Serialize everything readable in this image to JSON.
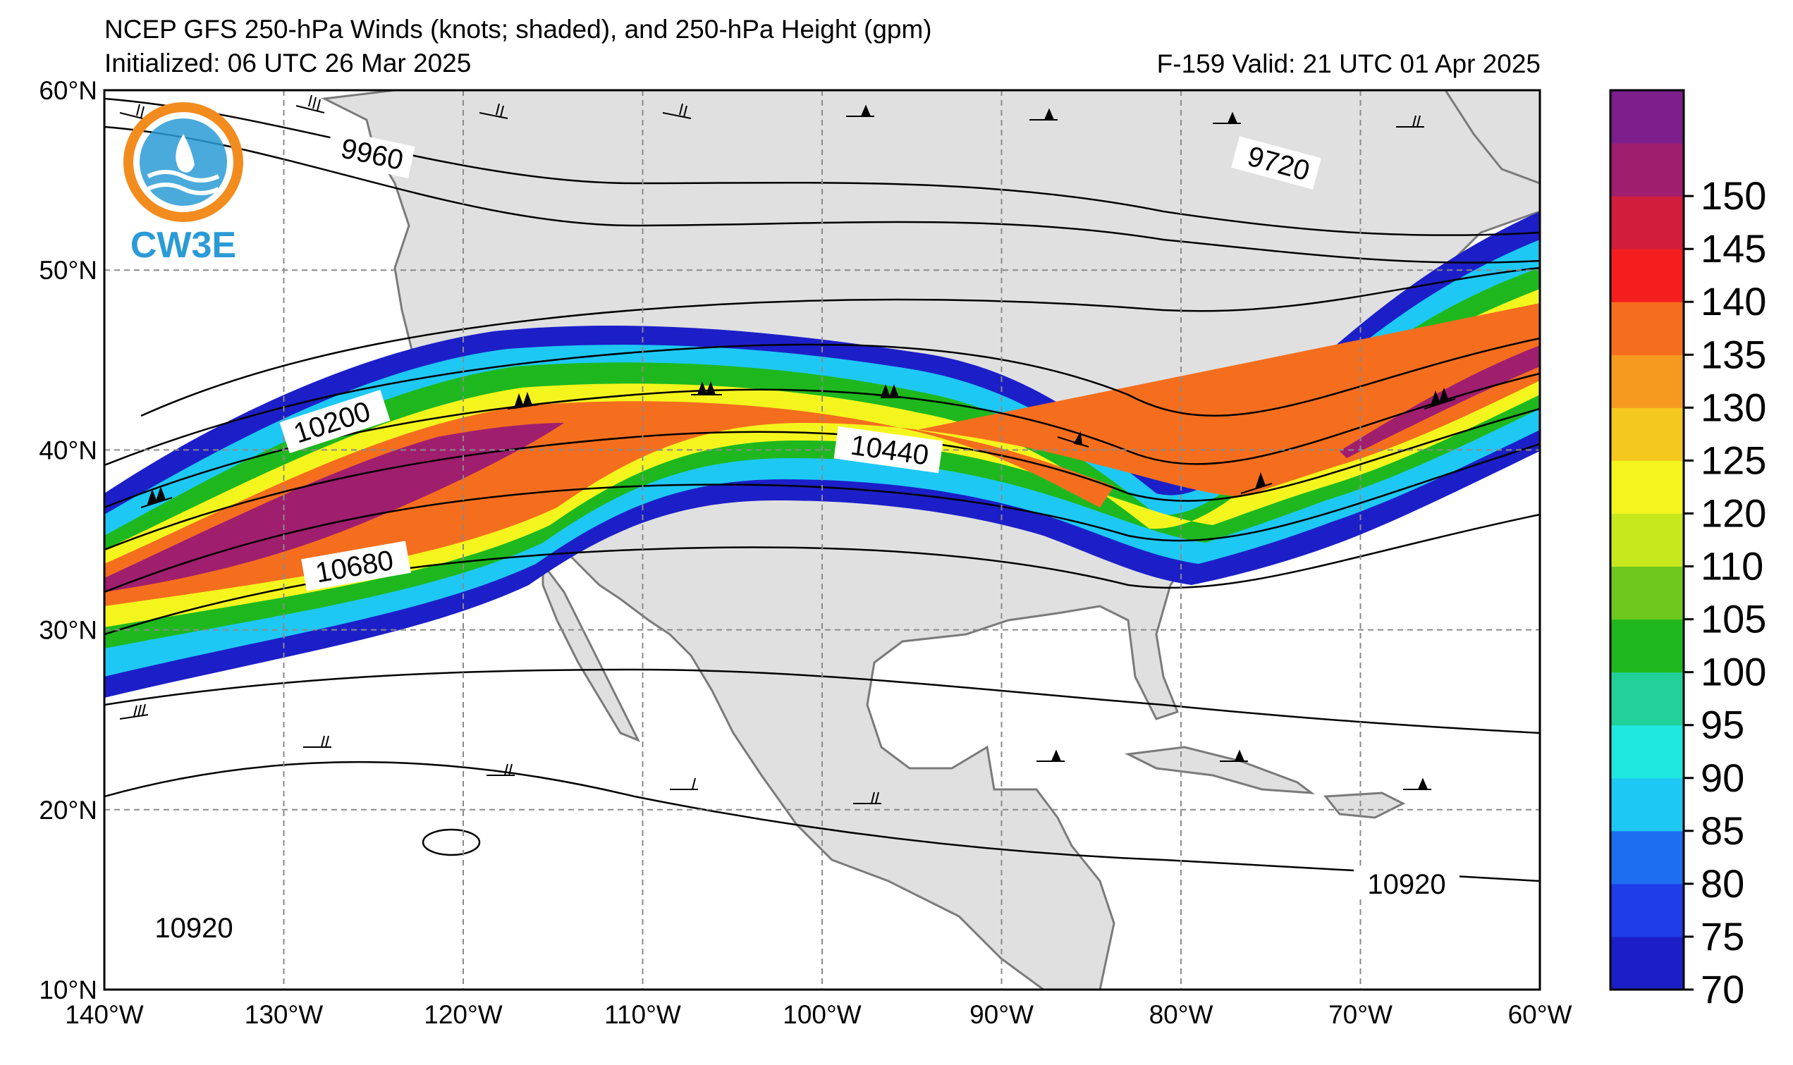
{
  "header": {
    "title_line1": "NCEP GFS 250-hPa Winds (knots; shaded), and 250-hPa Height (gpm)",
    "title_line2": "Initialized: 06 UTC 26 Mar 2025",
    "valid": "F-159  Valid: 21 UTC 01 Apr 2025"
  },
  "logo": {
    "text": "CW3E"
  },
  "map": {
    "projection": "PlateCarree",
    "lon_range": [
      -140,
      -60
    ],
    "lat_range": [
      10,
      60
    ],
    "gridlines": "dashed",
    "lat_labels": [
      "60°N",
      "50°N",
      "40°N",
      "30°N",
      "20°N",
      "10°N"
    ],
    "lon_labels": [
      "140°W",
      "130°W",
      "120°W",
      "110°W",
      "100°W",
      "90°W",
      "80°W",
      "70°W",
      "60°W"
    ],
    "land_color": "#e0e0e0",
    "ocean_color": "#ffffff"
  },
  "height_contours": {
    "units": "gpm",
    "labels": [
      "9960",
      "9720",
      "10200",
      "10440",
      "10680",
      "10920",
      "10920"
    ]
  },
  "colorbar": {
    "units": "knots",
    "levels": [
      70,
      75,
      80,
      85,
      90,
      95,
      100,
      105,
      110,
      120,
      125,
      130,
      135,
      140,
      145,
      150
    ],
    "tick_labels": [
      "70",
      "75",
      "80",
      "85",
      "90",
      "95",
      "100",
      "105",
      "110",
      "120",
      "125",
      "130",
      "135",
      "140",
      "145",
      "150"
    ],
    "colors": [
      "#1c1fc8",
      "#1f3de8",
      "#1e6ef2",
      "#1ec8f5",
      "#1ee8e0",
      "#22d09a",
      "#1eb81e",
      "#6ec81e",
      "#c8e81e",
      "#f5f51e",
      "#f5c81e",
      "#f59a1e",
      "#f56e1e",
      "#f51e1e",
      "#d21e3c",
      "#a01e6e",
      "#7d1e8c"
    ]
  }
}
